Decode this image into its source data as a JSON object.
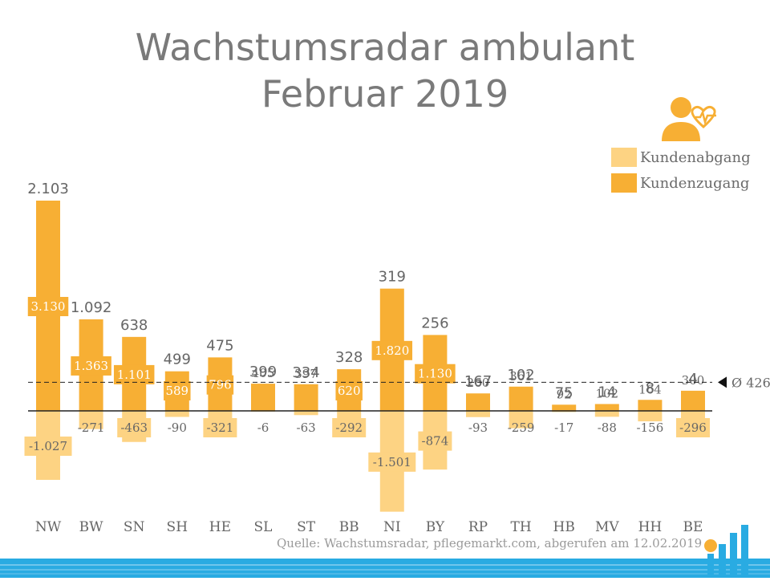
{
  "title": {
    "line1": "Wachstumsradar ambulant",
    "line2": "Februar 2019"
  },
  "legend": [
    {
      "label": "Kundenabgang",
      "color": "#fdd383"
    },
    {
      "label": "Kundenzugang",
      "color": "#f7af34"
    }
  ],
  "colors": {
    "zugang": "#f7af34",
    "abgang": "#fdd383",
    "label_text": "#666666",
    "axis": "#222222",
    "band": "#29abe2"
  },
  "icons": {
    "header": "person-heartbeat-icon",
    "logo": "pflegemarkt-logo"
  },
  "source": "Quelle: Wachstumsradar, pflegemarkt.com, abgerufen am 12.02.2019",
  "chart_data": {
    "type": "bar",
    "categories": [
      "NW",
      "BW",
      "SN",
      "SH",
      "HE",
      "SL",
      "ST",
      "BB",
      "NI",
      "BY",
      "RP",
      "TH",
      "HB",
      "MV",
      "HH",
      "BE"
    ],
    "series": [
      {
        "name": "Kundenzugang",
        "values": [
          3130,
          1363,
          1101,
          589,
          796,
          405,
          397,
          620,
          1820,
          1130,
          260,
          361,
          92,
          102,
          164,
          300
        ],
        "labels": [
          "3.130",
          "1.363",
          "1.101",
          "589",
          "796",
          "405",
          "397",
          "620",
          "1.820",
          "1.130",
          "260",
          "361",
          "92",
          "102",
          "164",
          "300"
        ]
      },
      {
        "name": "Kundenabgang",
        "values": [
          -1027,
          -271,
          -463,
          -90,
          -321,
          -6,
          -63,
          -292,
          -1501,
          -874,
          -93,
          -259,
          -17,
          -88,
          -156,
          -296
        ],
        "labels": [
          "-1.027",
          "-271",
          "-463",
          "-90",
          "-321",
          "-6",
          "-63",
          "-292",
          "-1.501",
          "-874",
          "-93",
          "-259",
          "-17",
          "-88",
          "-156",
          "-296"
        ]
      }
    ],
    "net": {
      "values": [
        2103,
        1092,
        638,
        499,
        475,
        399,
        334,
        328,
        319,
        256,
        167,
        102,
        75,
        14,
        8,
        4
      ],
      "labels": [
        "2.103",
        "1.092",
        "638",
        "499",
        "475",
        "399",
        "334",
        "328",
        "319",
        "256",
        "167",
        "102",
        "75",
        "14",
        "8",
        "4"
      ]
    },
    "average": {
      "value": 426,
      "label": "Ø 426"
    },
    "ylim": [
      -1501,
      3130
    ],
    "legend_position": "top-right",
    "grid": false
  }
}
